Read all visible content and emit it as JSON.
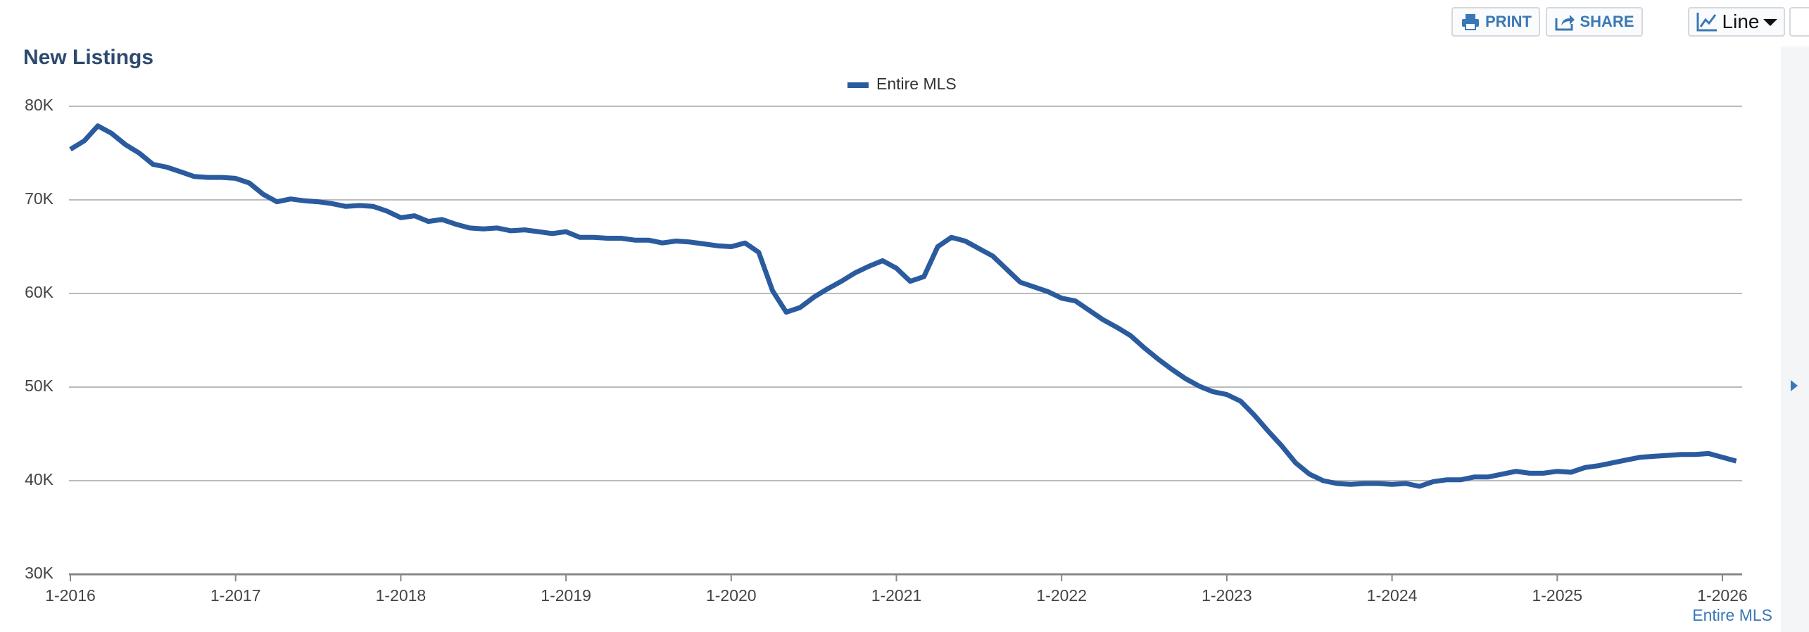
{
  "ui": {
    "print": "PRINT",
    "share": "SHARE",
    "chart_type": "Line"
  },
  "chart_data": {
    "type": "line",
    "title": "New Listings",
    "footer_label": "Entire MLS",
    "x": [
      "1-2016",
      "2-2016",
      "3-2016",
      "4-2016",
      "5-2016",
      "6-2016",
      "7-2016",
      "8-2016",
      "9-2016",
      "10-2016",
      "11-2016",
      "12-2016",
      "1-2017",
      "2-2017",
      "3-2017",
      "4-2017",
      "5-2017",
      "6-2017",
      "7-2017",
      "8-2017",
      "9-2017",
      "10-2017",
      "11-2017",
      "12-2017",
      "1-2018",
      "2-2018",
      "3-2018",
      "4-2018",
      "5-2018",
      "6-2018",
      "7-2018",
      "8-2018",
      "9-2018",
      "10-2018",
      "11-2018",
      "12-2018",
      "1-2019",
      "2-2019",
      "3-2019",
      "4-2019",
      "5-2019",
      "6-2019",
      "7-2019",
      "8-2019",
      "9-2019",
      "10-2019",
      "11-2019",
      "12-2019",
      "1-2020",
      "2-2020",
      "3-2020",
      "4-2020",
      "5-2020",
      "6-2020",
      "7-2020",
      "8-2020",
      "9-2020",
      "10-2020",
      "11-2020",
      "12-2020",
      "1-2021",
      "2-2021",
      "3-2021",
      "4-2021",
      "5-2021",
      "6-2021",
      "7-2021",
      "8-2021",
      "9-2021",
      "10-2021",
      "11-2021",
      "12-2021",
      "1-2022",
      "2-2022",
      "3-2022",
      "4-2022",
      "5-2022",
      "6-2022",
      "7-2022",
      "8-2022",
      "9-2022",
      "10-2022",
      "11-2022",
      "12-2022",
      "1-2023",
      "2-2023",
      "3-2023",
      "4-2023",
      "5-2023",
      "6-2023",
      "7-2023",
      "8-2023",
      "9-2023",
      "10-2023",
      "11-2023",
      "12-2023",
      "1-2024",
      "2-2024",
      "3-2024",
      "4-2024",
      "5-2024",
      "6-2024",
      "7-2024",
      "8-2024",
      "9-2024",
      "10-2024",
      "11-2024",
      "12-2024",
      "1-2025",
      "2-2025",
      "3-2025",
      "4-2025",
      "5-2025",
      "6-2025",
      "7-2025",
      "8-2025",
      "9-2025",
      "10-2025",
      "11-2025",
      "12-2025",
      "1-2026",
      "2-2026"
    ],
    "series": [
      {
        "name": "Entire MLS",
        "color": "#2a5b9e",
        "values": [
          75400,
          76300,
          77900,
          77100,
          75900,
          75000,
          73800,
          73500,
          73000,
          72500,
          72400,
          72400,
          72300,
          71800,
          70600,
          69800,
          70100,
          69900,
          69800,
          69600,
          69300,
          69400,
          69300,
          68800,
          68100,
          68300,
          67700,
          67900,
          67400,
          67000,
          66900,
          67000,
          66700,
          66800,
          66600,
          66400,
          66600,
          66000,
          66000,
          65900,
          65900,
          65700,
          65700,
          65400,
          65600,
          65500,
          65300,
          65100,
          65000,
          65400,
          64400,
          60300,
          58000,
          58500,
          59600,
          60500,
          61300,
          62200,
          62900,
          63500,
          62700,
          61300,
          61800,
          65000,
          66000,
          65600,
          64800,
          64000,
          62600,
          61200,
          60700,
          60200,
          59500,
          59200,
          58200,
          57200,
          56400,
          55500,
          54200,
          53000,
          51900,
          50900,
          50100,
          49500,
          49200,
          48500,
          47000,
          45300,
          43700,
          41900,
          40700,
          40000,
          39700,
          39600,
          39700,
          39700,
          39600,
          39700,
          39400,
          39900,
          40100,
          40100,
          40400,
          40400,
          40700,
          41000,
          40800,
          40800,
          41000,
          40900,
          41400,
          41600,
          41900,
          42200,
          42500,
          42600,
          42700,
          42800,
          42800,
          42900,
          42500,
          42100
        ]
      }
    ],
    "ylim": [
      30000,
      80000
    ],
    "yticks": [
      {
        "value": 30000,
        "label": "30K"
      },
      {
        "value": 40000,
        "label": "40K"
      },
      {
        "value": 50000,
        "label": "50K"
      },
      {
        "value": 60000,
        "label": "60K"
      },
      {
        "value": 70000,
        "label": "70K"
      },
      {
        "value": 80000,
        "label": "80K"
      }
    ],
    "grid": true
  }
}
